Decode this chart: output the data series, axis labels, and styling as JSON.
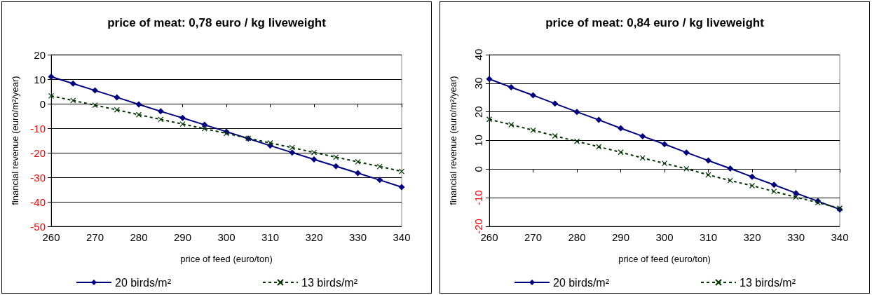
{
  "chart_data": [
    {
      "type": "line",
      "title": "price of meat: 0,78 euro / kg liveweight",
      "xlabel": "price of feed (euro/ton)",
      "ylabel": "financial revenue (euro/m²/year)",
      "x": [
        260,
        265,
        270,
        275,
        280,
        285,
        290,
        295,
        300,
        305,
        310,
        315,
        320,
        325,
        330,
        335,
        340
      ],
      "xlim": [
        260,
        340
      ],
      "xticks": [
        260,
        270,
        280,
        290,
        300,
        310,
        320,
        330,
        340
      ],
      "ylim": [
        -50,
        20
      ],
      "yticks": [
        -50,
        -40,
        -30,
        -20,
        -10,
        0,
        10,
        20
      ],
      "grid": "y",
      "legend": "bottom",
      "series": [
        {
          "name": "20 birds/m²",
          "color": "#000080",
          "marker": "diamond",
          "line_style": "solid",
          "values": [
            11,
            8.2,
            5.4,
            2.6,
            -0.3,
            -3.1,
            -5.8,
            -8.6,
            -11.4,
            -14.2,
            -17.1,
            -19.9,
            -22.7,
            -25.5,
            -28.3,
            -31.1,
            -34
          ]
        },
        {
          "name": "13 birds/m²",
          "color": "#003300",
          "marker": "cross",
          "line_style": "dashed",
          "values": [
            3.2,
            1.3,
            -0.6,
            -2.5,
            -4.5,
            -6.4,
            -8.3,
            -10.2,
            -12.1,
            -14.1,
            -16,
            -17.9,
            -19.9,
            -21.8,
            -23.7,
            -25.6,
            -27.6
          ]
        }
      ]
    },
    {
      "type": "line",
      "title": "price of meat: 0,84 euro / kg liveweight",
      "xlabel": "price of feed (euro/ton)",
      "ylabel": "financial revenue (euro/m²/year)",
      "x": [
        260,
        265,
        270,
        275,
        280,
        285,
        290,
        295,
        300,
        305,
        310,
        315,
        320,
        325,
        330,
        335,
        340
      ],
      "xlim": [
        260,
        340
      ],
      "xticks": [
        260,
        270,
        280,
        290,
        300,
        310,
        320,
        330,
        340
      ],
      "ylim": [
        -20,
        40
      ],
      "yticks": [
        -20,
        -10,
        0,
        10,
        20,
        30,
        40
      ],
      "grid": "y",
      "legend": "bottom",
      "series": [
        {
          "name": "20 birds/m²",
          "color": "#000080",
          "marker": "diamond",
          "line_style": "solid",
          "values": [
            31.5,
            28.6,
            25.8,
            22.9,
            20,
            17.2,
            14.3,
            11.5,
            8.7,
            5.8,
            3,
            0.2,
            -2.7,
            -5.5,
            -8.4,
            -11.2,
            -14.1
          ]
        },
        {
          "name": "13 birds/m²",
          "color": "#003300",
          "marker": "cross",
          "line_style": "dashed",
          "values": [
            17.4,
            15.5,
            13.6,
            11.6,
            9.7,
            7.8,
            5.9,
            3.9,
            2,
            0.1,
            -2,
            -4,
            -5.8,
            -7.8,
            -9.8,
            -11.7,
            -13.7
          ]
        }
      ]
    }
  ]
}
